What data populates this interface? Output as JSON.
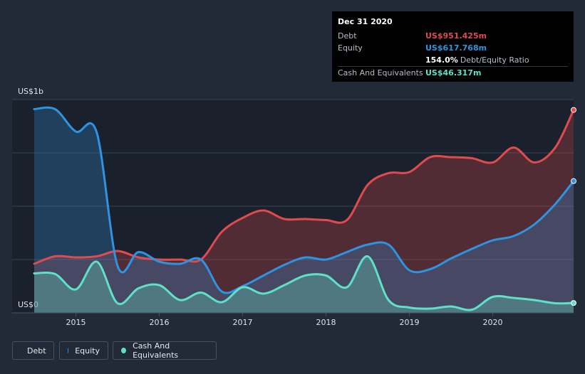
{
  "tooltip": {
    "date": "Dec 31 2020",
    "debt_label": "Debt",
    "debt_value": "US$951.425m",
    "equity_label": "Equity",
    "equity_value": "US$617.768m",
    "ratio_value": "154.0%",
    "ratio_label": "Debt/Equity Ratio",
    "cash_label": "Cash And Equivalents",
    "cash_value": "US$46.317m"
  },
  "legend": {
    "debt": "Debt",
    "equity": "Equity",
    "cash": "Cash And Equivalents"
  },
  "colors": {
    "debt": "#e04b4f",
    "equity": "#2e93e0",
    "cash": "#5fe0c8",
    "background": "#232a37",
    "plot_background": "#1b212c"
  },
  "chart_data": {
    "type": "area",
    "title": "",
    "xlabel": "",
    "ylabel": "",
    "y_top_label": "US$1b",
    "y_zero_label": "US$0",
    "xlim": [
      2014.5,
      2020.97
    ],
    "ylim": [
      0,
      1000
    ],
    "x_ticks": [
      2015,
      2016,
      2017,
      2018,
      2019,
      2020
    ],
    "x_tick_labels": [
      "2015",
      "2016",
      "2017",
      "2018",
      "2019",
      "2020"
    ],
    "series": [
      {
        "name": "Debt",
        "points": [
          [
            2014.5,
            230
          ],
          [
            2014.75,
            265
          ],
          [
            2015.0,
            260
          ],
          [
            2015.25,
            265
          ],
          [
            2015.5,
            290
          ],
          [
            2015.75,
            260
          ],
          [
            2016.0,
            250
          ],
          [
            2016.25,
            250
          ],
          [
            2016.5,
            250
          ],
          [
            2016.75,
            380
          ],
          [
            2017.0,
            445
          ],
          [
            2017.25,
            480
          ],
          [
            2017.5,
            440
          ],
          [
            2017.75,
            440
          ],
          [
            2018.0,
            435
          ],
          [
            2018.25,
            435
          ],
          [
            2018.5,
            600
          ],
          [
            2018.75,
            655
          ],
          [
            2019.0,
            660
          ],
          [
            2019.25,
            730
          ],
          [
            2019.5,
            730
          ],
          [
            2019.75,
            725
          ],
          [
            2020.0,
            705
          ],
          [
            2020.25,
            775
          ],
          [
            2020.5,
            705
          ],
          [
            2020.75,
            775
          ],
          [
            2020.97,
            951.4
          ]
        ]
      },
      {
        "name": "Equity",
        "points": [
          [
            2014.5,
            955
          ],
          [
            2014.75,
            955
          ],
          [
            2015.0,
            850
          ],
          [
            2015.25,
            845
          ],
          [
            2015.5,
            220
          ],
          [
            2015.75,
            285
          ],
          [
            2016.0,
            240
          ],
          [
            2016.25,
            230
          ],
          [
            2016.5,
            250
          ],
          [
            2016.75,
            100
          ],
          [
            2017.0,
            125
          ],
          [
            2017.25,
            175
          ],
          [
            2017.5,
            225
          ],
          [
            2017.75,
            260
          ],
          [
            2018.0,
            250
          ],
          [
            2018.25,
            285
          ],
          [
            2018.5,
            320
          ],
          [
            2018.75,
            320
          ],
          [
            2019.0,
            200
          ],
          [
            2019.25,
            205
          ],
          [
            2019.5,
            255
          ],
          [
            2019.75,
            300
          ],
          [
            2020.0,
            340
          ],
          [
            2020.25,
            360
          ],
          [
            2020.5,
            415
          ],
          [
            2020.75,
            510
          ],
          [
            2020.97,
            617.8
          ]
        ]
      },
      {
        "name": "Cash And Equivalents",
        "points": [
          [
            2014.5,
            185
          ],
          [
            2014.75,
            182
          ],
          [
            2015.0,
            110
          ],
          [
            2015.25,
            240
          ],
          [
            2015.5,
            45
          ],
          [
            2015.75,
            115
          ],
          [
            2016.0,
            130
          ],
          [
            2016.25,
            60
          ],
          [
            2016.5,
            95
          ],
          [
            2016.75,
            50
          ],
          [
            2017.0,
            120
          ],
          [
            2017.25,
            90
          ],
          [
            2017.5,
            130
          ],
          [
            2017.75,
            175
          ],
          [
            2018.0,
            175
          ],
          [
            2018.25,
            120
          ],
          [
            2018.5,
            265
          ],
          [
            2018.75,
            60
          ],
          [
            2019.0,
            25
          ],
          [
            2019.25,
            20
          ],
          [
            2019.5,
            30
          ],
          [
            2019.75,
            15
          ],
          [
            2020.0,
            75
          ],
          [
            2020.25,
            70
          ],
          [
            2020.5,
            60
          ],
          [
            2020.75,
            45
          ],
          [
            2020.97,
            46.3
          ]
        ]
      }
    ]
  }
}
